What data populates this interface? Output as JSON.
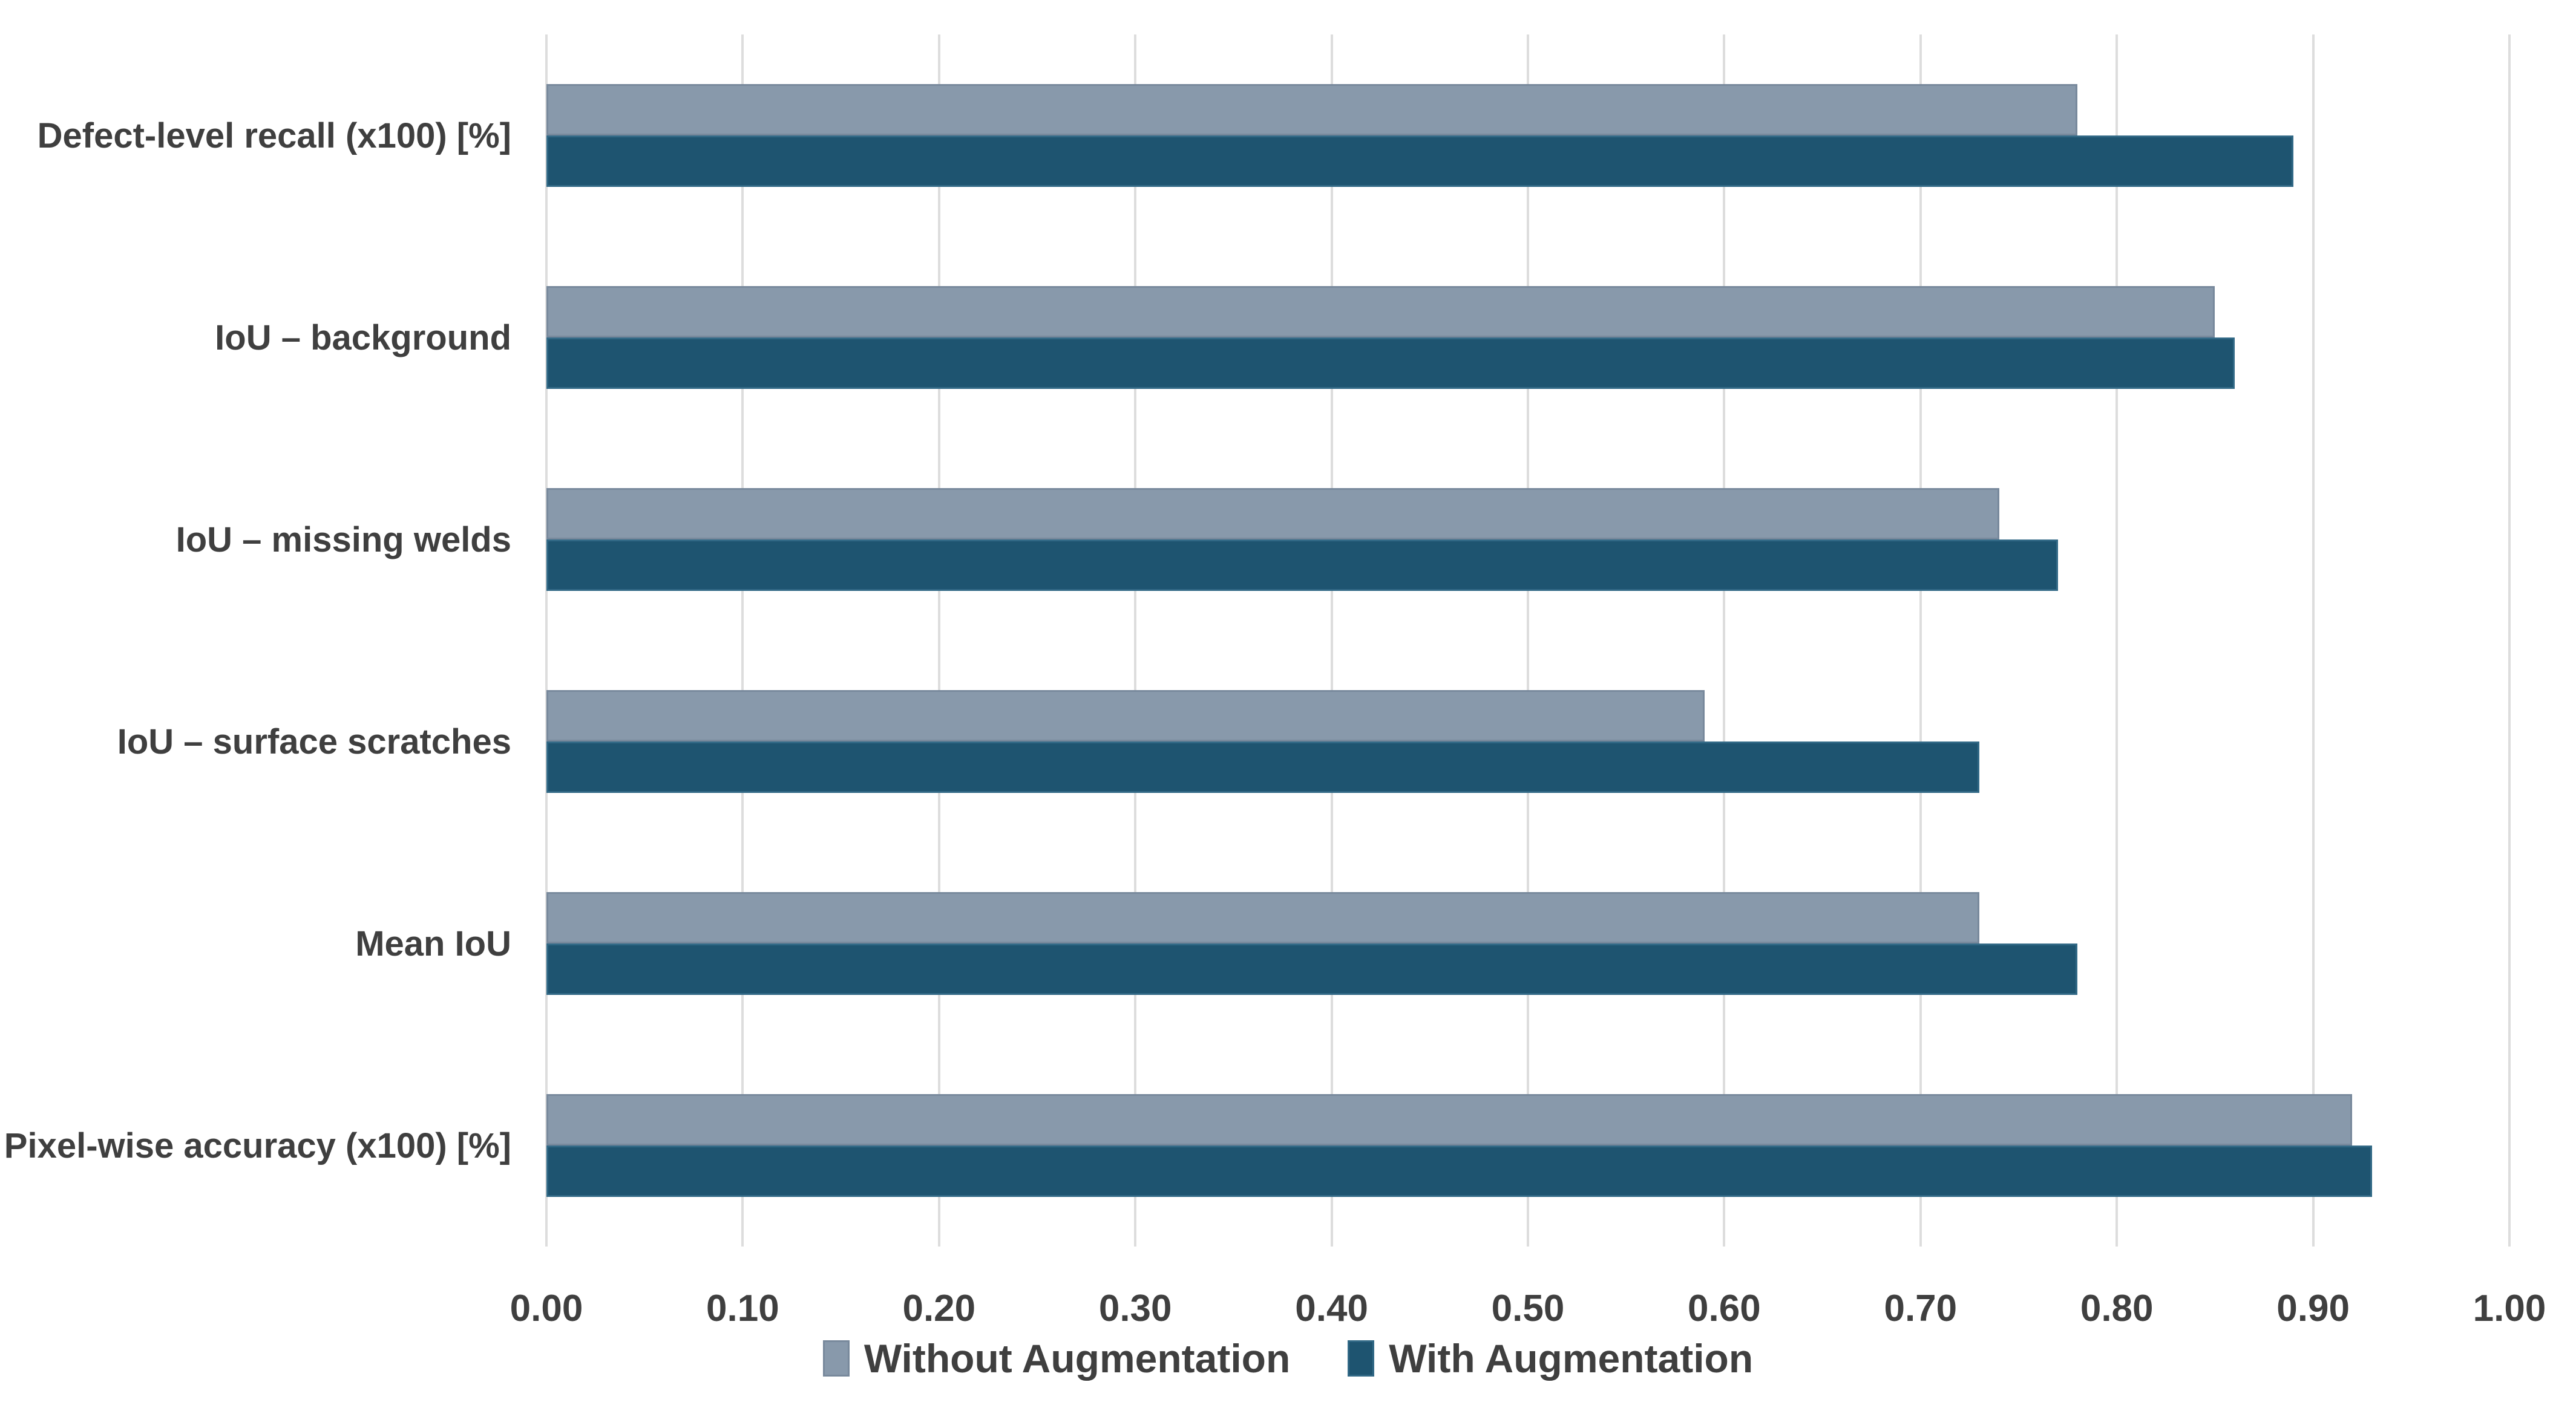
{
  "chart_data": {
    "type": "bar",
    "orientation": "horizontal",
    "title": "",
    "categories": [
      "Defect-level recall (x100) [%]",
      "IoU – background",
      "IoU – missing welds",
      "IoU – surface scratches",
      "Mean IoU",
      "Pixel-wise accuracy (x100) [%]"
    ],
    "series": [
      {
        "name": "Without Augmentation",
        "color": "#8899AB",
        "border_color": "#78899C",
        "values": [
          0.78,
          0.85,
          0.74,
          0.59,
          0.73,
          0.92
        ]
      },
      {
        "name": "With Augmentation",
        "color": "#1E5470",
        "border_color": "#326986",
        "values": [
          0.89,
          0.86,
          0.77,
          0.73,
          0.78,
          0.93
        ]
      }
    ],
    "x_axis": {
      "min": 0.0,
      "max": 1.0,
      "tick_step": 0.1,
      "tick_labels": [
        "0.00",
        "0.10",
        "0.20",
        "0.30",
        "0.40",
        "0.50",
        "0.60",
        "0.70",
        "0.80",
        "0.90",
        "1.00"
      ]
    },
    "grid": "vertical-only",
    "gridline_color": "#DDDDDD",
    "text_color": "#3F3F3F",
    "background_color": "#FFFFFF",
    "legend_position": "bottom"
  }
}
